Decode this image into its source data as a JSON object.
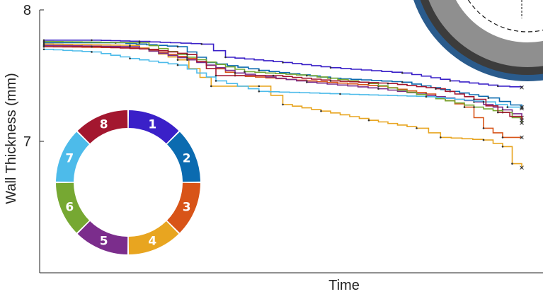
{
  "chart_data": {
    "type": "line",
    "xlabel": "Time",
    "ylabel": "Wall Thickness (mm)",
    "ylim": [
      6.0,
      8.0
    ],
    "yticks": [
      {
        "value": 8,
        "label": "8"
      },
      {
        "value": 7,
        "label": "7"
      }
    ],
    "x_tick_labels": "none",
    "legend": {
      "style": "segmented ring",
      "placement": "lower-left"
    },
    "inset_image": {
      "description": "pipe cross-section",
      "placement": "top-right"
    },
    "end_marker": "x",
    "series": [
      {
        "id": "1",
        "color": "#3a20c8",
        "points": [
          [
            0,
            7.77
          ],
          [
            0.1,
            7.77
          ],
          [
            0.2,
            7.76
          ],
          [
            0.33,
            7.74
          ],
          [
            0.38,
            7.64
          ],
          [
            0.5,
            7.6
          ],
          [
            0.6,
            7.56
          ],
          [
            0.75,
            7.52
          ],
          [
            0.85,
            7.46
          ],
          [
            0.95,
            7.42
          ],
          [
            1.0,
            7.41
          ]
        ]
      },
      {
        "id": "2",
        "color": "#0b6bb0",
        "points": [
          [
            0,
            7.75
          ],
          [
            0.15,
            7.75
          ],
          [
            0.28,
            7.72
          ],
          [
            0.34,
            7.6
          ],
          [
            0.45,
            7.54
          ],
          [
            0.6,
            7.48
          ],
          [
            0.75,
            7.45
          ],
          [
            0.85,
            7.38
          ],
          [
            0.93,
            7.33
          ],
          [
            1.0,
            7.25
          ]
        ]
      },
      {
        "id": "3",
        "color": "#d85418",
        "points": [
          [
            0,
            7.72
          ],
          [
            0.2,
            7.71
          ],
          [
            0.3,
            7.63
          ],
          [
            0.4,
            7.5
          ],
          [
            0.55,
            7.46
          ],
          [
            0.7,
            7.42
          ],
          [
            0.8,
            7.36
          ],
          [
            0.88,
            7.26
          ],
          [
            0.92,
            7.1
          ],
          [
            0.96,
            7.03
          ],
          [
            1.0,
            7.03
          ]
        ]
      },
      {
        "id": "4",
        "color": "#e8a520",
        "points": [
          [
            0,
            7.74
          ],
          [
            0.18,
            7.73
          ],
          [
            0.28,
            7.62
          ],
          [
            0.35,
            7.42
          ],
          [
            0.45,
            7.42
          ],
          [
            0.5,
            7.28
          ],
          [
            0.58,
            7.23
          ],
          [
            0.68,
            7.16
          ],
          [
            0.78,
            7.1
          ],
          [
            0.83,
            7.03
          ],
          [
            0.92,
            7.01
          ],
          [
            0.96,
            6.96
          ],
          [
            0.98,
            6.83
          ],
          [
            1.0,
            6.8
          ]
        ]
      },
      {
        "id": "5",
        "color": "#7b2d8c",
        "points": [
          [
            0,
            7.73
          ],
          [
            0.18,
            7.72
          ],
          [
            0.3,
            7.62
          ],
          [
            0.4,
            7.52
          ],
          [
            0.55,
            7.45
          ],
          [
            0.7,
            7.4
          ],
          [
            0.82,
            7.34
          ],
          [
            0.9,
            7.3
          ],
          [
            0.96,
            7.24
          ],
          [
            1.0,
            7.18
          ]
        ]
      },
      {
        "id": "6",
        "color": "#76a832",
        "points": [
          [
            0,
            7.76
          ],
          [
            0.2,
            7.75
          ],
          [
            0.3,
            7.64
          ],
          [
            0.42,
            7.53
          ],
          [
            0.55,
            7.5
          ],
          [
            0.68,
            7.44
          ],
          [
            0.8,
            7.34
          ],
          [
            0.9,
            7.26
          ],
          [
            0.96,
            7.22
          ],
          [
            1.0,
            7.14
          ]
        ]
      },
      {
        "id": "7",
        "color": "#4dbbea",
        "points": [
          [
            0,
            7.7
          ],
          [
            0.1,
            7.68
          ],
          [
            0.18,
            7.63
          ],
          [
            0.28,
            7.58
          ],
          [
            0.36,
            7.46
          ],
          [
            0.45,
            7.38
          ],
          [
            0.62,
            7.36
          ],
          [
            0.8,
            7.34
          ],
          [
            0.92,
            7.3
          ],
          [
            0.97,
            7.26
          ],
          [
            1.0,
            7.26
          ]
        ]
      },
      {
        "id": "8",
        "color": "#a3172f",
        "points": [
          [
            0,
            7.72
          ],
          [
            0.1,
            7.72
          ],
          [
            0.22,
            7.7
          ],
          [
            0.3,
            7.66
          ],
          [
            0.36,
            7.5
          ],
          [
            0.48,
            7.5
          ],
          [
            0.6,
            7.46
          ],
          [
            0.72,
            7.44
          ],
          [
            0.82,
            7.4
          ],
          [
            0.9,
            7.32
          ],
          [
            0.95,
            7.22
          ],
          [
            1.0,
            7.16
          ]
        ]
      }
    ]
  },
  "ring": {
    "segments": [
      {
        "label": "1",
        "color": "#3a20c8"
      },
      {
        "label": "2",
        "color": "#0b6bb0"
      },
      {
        "label": "3",
        "color": "#d85418"
      },
      {
        "label": "4",
        "color": "#e8a520"
      },
      {
        "label": "5",
        "color": "#7b2d8c"
      },
      {
        "label": "6",
        "color": "#76a832"
      },
      {
        "label": "7",
        "color": "#4dbbea"
      },
      {
        "label": "8",
        "color": "#a3172f"
      }
    ]
  },
  "colors": {
    "axis": "#222222",
    "pipe_outer": "#2a5b8c",
    "pipe_dark": "#3c3c3c",
    "pipe_wall": "#8f8f8f"
  }
}
